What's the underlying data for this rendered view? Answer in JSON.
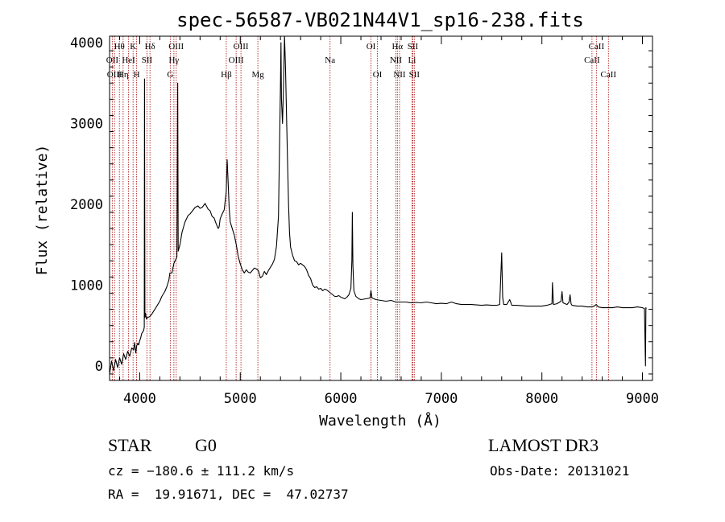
{
  "chart_data": {
    "type": "line",
    "title": "spec-56587-VB021N44V1_sp16-238.fits",
    "xlabel": "Wavelength (Å)",
    "ylabel": "Flux (relative)",
    "xlim": [
      3700,
      9100
    ],
    "ylim": [
      -180,
      4080
    ],
    "x_ticks": [
      4000,
      5000,
      6000,
      7000,
      8000,
      9000
    ],
    "x_tick_labels": [
      "4000",
      "5000",
      "6000",
      "7000",
      "8000",
      "9000"
    ],
    "y_ticks": [
      0,
      1000,
      2000,
      3000,
      4000
    ],
    "y_tick_labels": [
      "0",
      "1000",
      "2000",
      "3000",
      "4000"
    ],
    "grid": false,
    "legend": "none",
    "line_color": "#000000",
    "marker_color": "#b22222",
    "series": [
      {
        "points": [
          [
            3700,
            -100
          ],
          [
            3720,
            60
          ],
          [
            3740,
            -60
          ],
          [
            3760,
            80
          ],
          [
            3780,
            -20
          ],
          [
            3800,
            100
          ],
          [
            3820,
            20
          ],
          [
            3840,
            150
          ],
          [
            3860,
            80
          ],
          [
            3880,
            180
          ],
          [
            3900,
            120
          ],
          [
            3920,
            220
          ],
          [
            3940,
            200
          ],
          [
            3950,
            290
          ],
          [
            3960,
            160
          ],
          [
            3970,
            250
          ],
          [
            3980,
            280
          ],
          [
            3990,
            260
          ],
          [
            4000,
            310
          ],
          [
            4010,
            350
          ],
          [
            4020,
            400
          ],
          [
            4030,
            420
          ],
          [
            4040,
            440
          ],
          [
            4045,
            480
          ],
          [
            4048,
            3550
          ],
          [
            4052,
            600
          ],
          [
            4058,
            650
          ],
          [
            4065,
            580
          ],
          [
            4080,
            600
          ],
          [
            4100,
            610
          ],
          [
            4120,
            640
          ],
          [
            4150,
            700
          ],
          [
            4180,
            760
          ],
          [
            4200,
            800
          ],
          [
            4220,
            860
          ],
          [
            4250,
            920
          ],
          [
            4270,
            980
          ],
          [
            4290,
            1060
          ],
          [
            4300,
            1150
          ],
          [
            4320,
            1150
          ],
          [
            4340,
            1270
          ],
          [
            4360,
            1320
          ],
          [
            4370,
            1350
          ],
          [
            4378,
            3500
          ],
          [
            4383,
            1420
          ],
          [
            4400,
            1500
          ],
          [
            4420,
            1650
          ],
          [
            4450,
            1780
          ],
          [
            4480,
            1860
          ],
          [
            4500,
            1880
          ],
          [
            4520,
            1910
          ],
          [
            4550,
            1960
          ],
          [
            4580,
            1980
          ],
          [
            4600,
            1950
          ],
          [
            4620,
            1960
          ],
          [
            4650,
            2010
          ],
          [
            4680,
            1940
          ],
          [
            4700,
            1920
          ],
          [
            4720,
            1850
          ],
          [
            4740,
            1830
          ],
          [
            4760,
            1760
          ],
          [
            4780,
            1700
          ],
          [
            4790,
            1720
          ],
          [
            4800,
            1820
          ],
          [
            4820,
            1880
          ],
          [
            4840,
            1930
          ],
          [
            4860,
            2150
          ],
          [
            4870,
            2550
          ],
          [
            4880,
            2250
          ],
          [
            4890,
            1950
          ],
          [
            4900,
            1780
          ],
          [
            4920,
            1700
          ],
          [
            4940,
            1620
          ],
          [
            4960,
            1500
          ],
          [
            4980,
            1350
          ],
          [
            5000,
            1260
          ],
          [
            5020,
            1190
          ],
          [
            5040,
            1150
          ],
          [
            5060,
            1190
          ],
          [
            5080,
            1160
          ],
          [
            5100,
            1150
          ],
          [
            5120,
            1180
          ],
          [
            5140,
            1210
          ],
          [
            5160,
            1200
          ],
          [
            5180,
            1180
          ],
          [
            5200,
            1090
          ],
          [
            5220,
            1110
          ],
          [
            5240,
            1170
          ],
          [
            5260,
            1130
          ],
          [
            5280,
            1180
          ],
          [
            5300,
            1220
          ],
          [
            5320,
            1260
          ],
          [
            5340,
            1320
          ],
          [
            5360,
            1480
          ],
          [
            5380,
            1850
          ],
          [
            5390,
            2650
          ],
          [
            5400,
            3500
          ],
          [
            5405,
            4000
          ],
          [
            5410,
            3300
          ],
          [
            5420,
            3000
          ],
          [
            5430,
            3450
          ],
          [
            5440,
            4080
          ],
          [
            5450,
            3700
          ],
          [
            5460,
            3100
          ],
          [
            5470,
            2550
          ],
          [
            5480,
            2000
          ],
          [
            5490,
            1650
          ],
          [
            5500,
            1470
          ],
          [
            5520,
            1370
          ],
          [
            5540,
            1300
          ],
          [
            5560,
            1290
          ],
          [
            5580,
            1250
          ],
          [
            5600,
            1270
          ],
          [
            5620,
            1250
          ],
          [
            5640,
            1230
          ],
          [
            5660,
            1190
          ],
          [
            5680,
            1120
          ],
          [
            5700,
            1080
          ],
          [
            5720,
            1000
          ],
          [
            5740,
            970
          ],
          [
            5760,
            980
          ],
          [
            5780,
            950
          ],
          [
            5800,
            960
          ],
          [
            5820,
            930
          ],
          [
            5840,
            950
          ],
          [
            5860,
            940
          ],
          [
            5880,
            920
          ],
          [
            5900,
            900
          ],
          [
            5920,
            880
          ],
          [
            5940,
            860
          ],
          [
            5960,
            860
          ],
          [
            5980,
            870
          ],
          [
            6000,
            850
          ],
          [
            6020,
            840
          ],
          [
            6040,
            830
          ],
          [
            6060,
            850
          ],
          [
            6080,
            880
          ],
          [
            6100,
            960
          ],
          [
            6110,
            1300
          ],
          [
            6115,
            1900
          ],
          [
            6120,
            1250
          ],
          [
            6130,
            930
          ],
          [
            6150,
            860
          ],
          [
            6180,
            830
          ],
          [
            6200,
            820
          ],
          [
            6250,
            830
          ],
          [
            6290,
            840
          ],
          [
            6300,
            930
          ],
          [
            6310,
            840
          ],
          [
            6350,
            820
          ],
          [
            6400,
            810
          ],
          [
            6450,
            800
          ],
          [
            6500,
            810
          ],
          [
            6550,
            790
          ],
          [
            6600,
            790
          ],
          [
            6650,
            790
          ],
          [
            6700,
            780
          ],
          [
            6750,
            785
          ],
          [
            6800,
            780
          ],
          [
            6850,
            790
          ],
          [
            6900,
            780
          ],
          [
            6950,
            770
          ],
          [
            7000,
            775
          ],
          [
            7050,
            770
          ],
          [
            7100,
            790
          ],
          [
            7150,
            770
          ],
          [
            7200,
            760
          ],
          [
            7250,
            760
          ],
          [
            7300,
            760
          ],
          [
            7350,
            755
          ],
          [
            7400,
            750
          ],
          [
            7450,
            755
          ],
          [
            7500,
            750
          ],
          [
            7550,
            750
          ],
          [
            7580,
            760
          ],
          [
            7600,
            1400
          ],
          [
            7610,
            850
          ],
          [
            7620,
            760
          ],
          [
            7650,
            760
          ],
          [
            7680,
            820
          ],
          [
            7700,
            750
          ],
          [
            7750,
            750
          ],
          [
            7800,
            745
          ],
          [
            7850,
            740
          ],
          [
            7900,
            740
          ],
          [
            7950,
            740
          ],
          [
            8000,
            740
          ],
          [
            8050,
            750
          ],
          [
            8100,
            770
          ],
          [
            8105,
            1030
          ],
          [
            8115,
            760
          ],
          [
            8150,
            770
          ],
          [
            8190,
            800
          ],
          [
            8200,
            920
          ],
          [
            8210,
            780
          ],
          [
            8250,
            760
          ],
          [
            8270,
            790
          ],
          [
            8280,
            880
          ],
          [
            8290,
            770
          ],
          [
            8300,
            750
          ],
          [
            8350,
            740
          ],
          [
            8400,
            740
          ],
          [
            8450,
            730
          ],
          [
            8500,
            730
          ],
          [
            8520,
            740
          ],
          [
            8540,
            760
          ],
          [
            8560,
            730
          ],
          [
            8600,
            720
          ],
          [
            8650,
            720
          ],
          [
            8700,
            720
          ],
          [
            8750,
            730
          ],
          [
            8800,
            720
          ],
          [
            8850,
            720
          ],
          [
            8900,
            720
          ],
          [
            8950,
            730
          ],
          [
            9000,
            720
          ],
          [
            9020,
            710
          ],
          [
            9030,
            0
          ],
          [
            9034,
            720
          ],
          [
            9040,
            710
          ]
        ]
      }
    ],
    "annotations": [
      {
        "text": "Hθ",
        "x": 3798,
        "row": 1
      },
      {
        "text": "K",
        "x": 3934,
        "row": 1
      },
      {
        "text": "Hδ",
        "x": 4102,
        "row": 1
      },
      {
        "text": "OIII",
        "x": 4363,
        "row": 1
      },
      {
        "text": "OIII",
        "x": 5007,
        "row": 1
      },
      {
        "text": "OI",
        "x": 6300,
        "row": 1
      },
      {
        "text": "Hα",
        "x": 6563,
        "row": 1
      },
      {
        "text": "SII",
        "x": 6716,
        "row": 1
      },
      {
        "text": "CaII",
        "x": 8542,
        "row": 1
      },
      {
        "text": "OII",
        "x": 3727,
        "row": 2
      },
      {
        "text": "HeI",
        "x": 3889,
        "row": 2
      },
      {
        "text": "SII",
        "x": 4072,
        "row": 2
      },
      {
        "text": "Hγ",
        "x": 4340,
        "row": 2
      },
      {
        "text": "OIII",
        "x": 4959,
        "row": 2
      },
      {
        "text": "Na",
        "x": 5893,
        "row": 2
      },
      {
        "text": "NII",
        "x": 6548,
        "row": 2
      },
      {
        "text": "Li",
        "x": 6708,
        "row": 2
      },
      {
        "text": "CaII",
        "x": 8498,
        "row": 2
      },
      {
        "text": "OIII",
        "x": 3750,
        "row": 3
      },
      {
        "text": "Hη",
        "x": 3835,
        "row": 3
      },
      {
        "text": "H",
        "x": 3969,
        "row": 3
      },
      {
        "text": "G",
        "x": 4304,
        "row": 3
      },
      {
        "text": "Hβ",
        "x": 4861,
        "row": 3
      },
      {
        "text": "Mg",
        "x": 5175,
        "row": 3
      },
      {
        "text": "OI",
        "x": 6364,
        "row": 3
      },
      {
        "text": "NII",
        "x": 6584,
        "row": 3
      },
      {
        "text": "SII",
        "x": 6731,
        "row": 3
      },
      {
        "text": "CaII",
        "x": 8662,
        "row": 3
      }
    ]
  },
  "info": {
    "object_class": "STAR",
    "subclass": "G0",
    "survey": "LAMOST DR3",
    "redshift_line": "cz = −180.6 ± 111.2 km/s",
    "obs_date_line": "Obs-Date: 20131021",
    "coords_line": "RA =  19.91671, DEC =  47.02737"
  }
}
